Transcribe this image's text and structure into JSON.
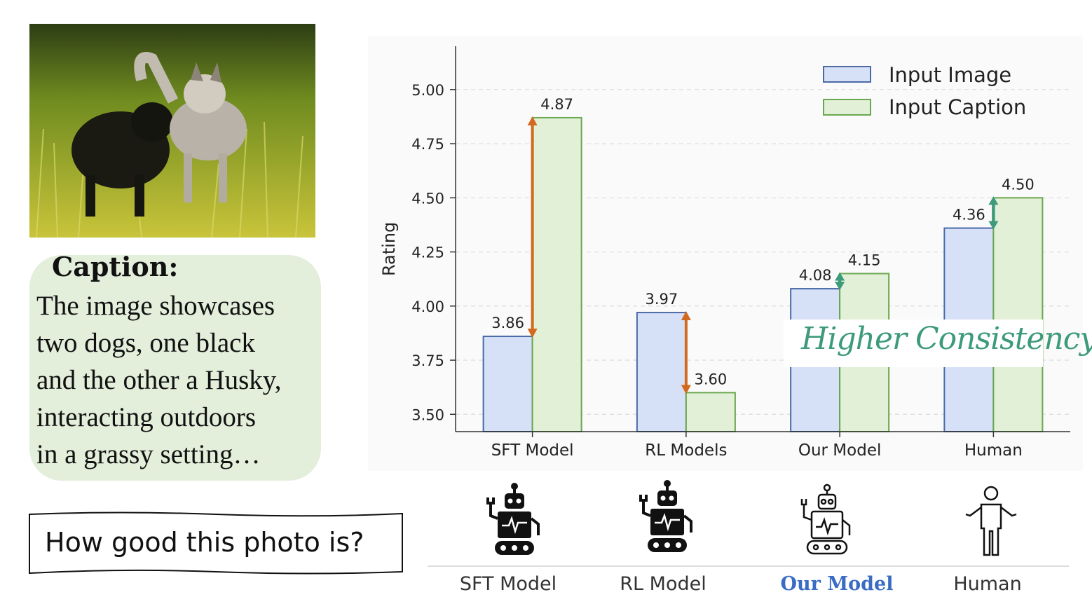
{
  "caption": {
    "title": "Caption:",
    "lines": [
      "The image showcases",
      "two dogs, one black",
      "and the other a Husky,",
      "interacting outdoors",
      "in a grassy setting…"
    ]
  },
  "question": "How good this photo is?",
  "annotation": "Higher Consistency",
  "colors": {
    "image_fill": "#d6e1f7",
    "image_edge": "#4a6aa6",
    "caption_fill": "#e2f0d7",
    "caption_edge": "#6aa84f",
    "big_gap": "#d2691e",
    "small_gap": "#3d9a7a",
    "highlight_label": "#3a6cc4"
  },
  "icons": [
    "robot-icon",
    "robot-icon",
    "robot-outline-icon",
    "human-icon"
  ],
  "bottom_labels": [
    "SFT Model",
    "RL Model",
    "Our Model",
    "Human"
  ],
  "chart_data": {
    "type": "bar",
    "categories": [
      "SFT Model",
      "RL Models",
      "Our Model",
      "Human"
    ],
    "series": [
      {
        "name": "Input Image",
        "values": [
          3.86,
          3.97,
          4.08,
          4.36
        ]
      },
      {
        "name": "Input Caption",
        "values": [
          4.87,
          3.6,
          4.15,
          4.5
        ]
      }
    ],
    "data_labels": [
      [
        "3.86",
        "3.97",
        "4.08",
        "4.36"
      ],
      [
        "4.87",
        "3.60",
        "4.15",
        "4.50"
      ]
    ],
    "ylabel": "Rating",
    "ylim": [
      3.42,
      5.2
    ],
    "yticks": [
      "3.50",
      "3.75",
      "4.00",
      "4.25",
      "4.50",
      "4.75",
      "5.00"
    ],
    "legend": "top-right",
    "grid": "y-dashed",
    "gap_arrows": [
      {
        "category": "SFT Model",
        "style": "large"
      },
      {
        "category": "RL Models",
        "style": "large"
      },
      {
        "category": "Our Model",
        "style": "small"
      },
      {
        "category": "Human",
        "style": "small"
      }
    ]
  }
}
